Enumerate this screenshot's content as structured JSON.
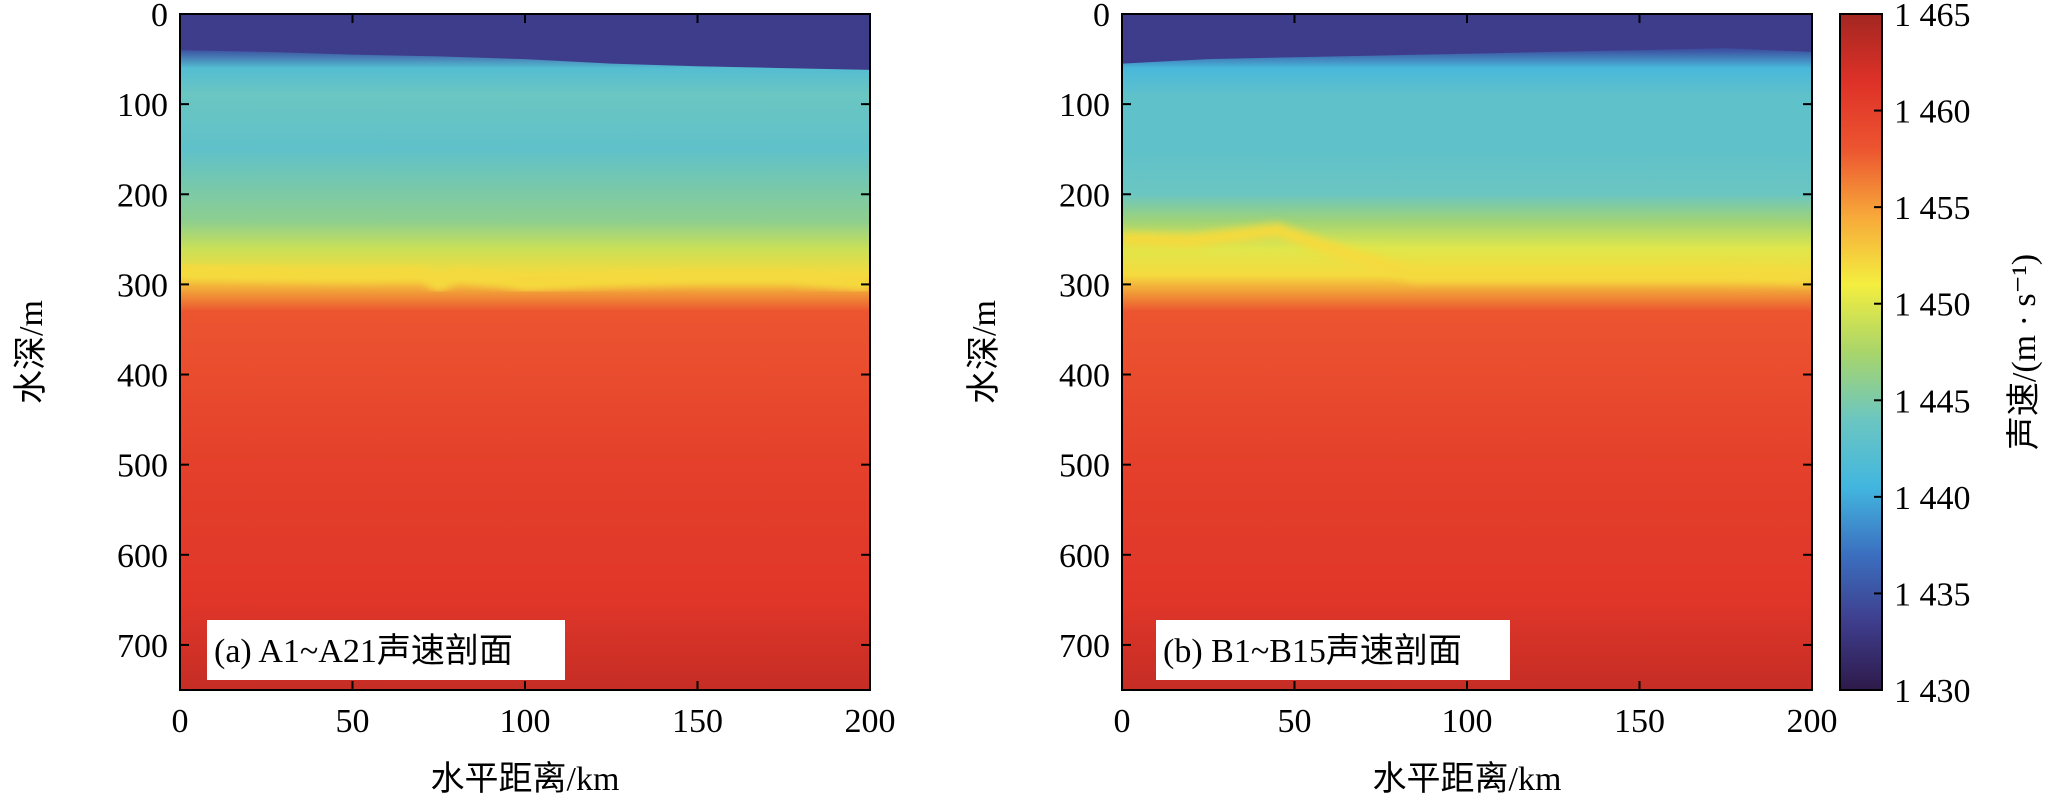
{
  "chart_data": [
    {
      "type": "heatmap",
      "panel_label": "(a) A1~A21声速剖面",
      "xlabel": "水平距离/km",
      "ylabel": "水深/m",
      "xlim": [
        0,
        200
      ],
      "ylim": [
        750,
        0
      ],
      "xticks": [
        "0",
        "50",
        "100",
        "150",
        "200"
      ],
      "yticks": [
        "0",
        "100",
        "200",
        "300",
        "400",
        "500",
        "600",
        "700"
      ],
      "grid": false,
      "description_series": [
        {
          "name": "surface_layer_bottom_depth",
          "x": [
            0,
            25,
            50,
            75,
            100,
            125,
            150,
            175,
            200
          ],
          "y": [
            40,
            42,
            45,
            47,
            50,
            55,
            58,
            60,
            62
          ]
        },
        {
          "name": "thermocline_yellow_depth",
          "x": [
            0,
            25,
            50,
            70,
            75,
            80,
            95,
            100,
            125,
            150,
            175,
            200
          ],
          "y": [
            285,
            288,
            290,
            288,
            300,
            290,
            296,
            300,
            295,
            292,
            292,
            300
          ]
        }
      ],
      "color_field": {
        "depth": [
          0,
          40,
          60,
          90,
          150,
          230,
          260,
          290,
          330,
          500,
          650,
          750
        ],
        "speed": [
          1433,
          1435,
          1442,
          1444,
          1443,
          1446,
          1449,
          1452,
          1458,
          1460,
          1461,
          1463
        ]
      }
    },
    {
      "type": "heatmap",
      "panel_label": "(b) B1~B15声速剖面",
      "xlabel": "水平距离/km",
      "ylabel": "水深/m",
      "xlim": [
        0,
        200
      ],
      "ylim": [
        750,
        0
      ],
      "xticks": [
        "0",
        "50",
        "100",
        "150",
        "200"
      ],
      "yticks": [
        "0",
        "100",
        "200",
        "300",
        "400",
        "500",
        "600",
        "700"
      ],
      "grid": false,
      "description_series": [
        {
          "name": "surface_layer_bottom_depth",
          "x": [
            0,
            25,
            50,
            75,
            100,
            125,
            150,
            175,
            200
          ],
          "y": [
            55,
            50,
            48,
            46,
            44,
            42,
            40,
            38,
            42
          ]
        },
        {
          "name": "thermocline_yellow_depth",
          "x": [
            0,
            20,
            45,
            60,
            85,
            100,
            125,
            150,
            175,
            200
          ],
          "y": [
            250,
            252,
            240,
            260,
            290,
            290,
            290,
            290,
            290,
            292
          ]
        }
      ],
      "color_field": {
        "depth": [
          0,
          40,
          60,
          90,
          150,
          200,
          230,
          260,
          290,
          330,
          500,
          650,
          750
        ],
        "speed": [
          1433,
          1435,
          1441,
          1443,
          1443,
          1444,
          1447,
          1450,
          1452,
          1458,
          1460,
          1461,
          1463
        ]
      }
    }
  ],
  "colorbar": {
    "label": "声速/(m · s⁻¹)",
    "range": [
      1430,
      1465
    ],
    "ticks": [
      "1 430",
      "1 435",
      "1 440",
      "1 445",
      "1 450",
      "1 455",
      "1 460",
      "1 465"
    ],
    "colors": [
      "#2e1a4a",
      "#3e3d8c",
      "#3b6fbf",
      "#42b6df",
      "#6bc6c1",
      "#a9d56a",
      "#f4ee3f",
      "#f7a93a",
      "#ec5530",
      "#de3128",
      "#a32721"
    ]
  }
}
